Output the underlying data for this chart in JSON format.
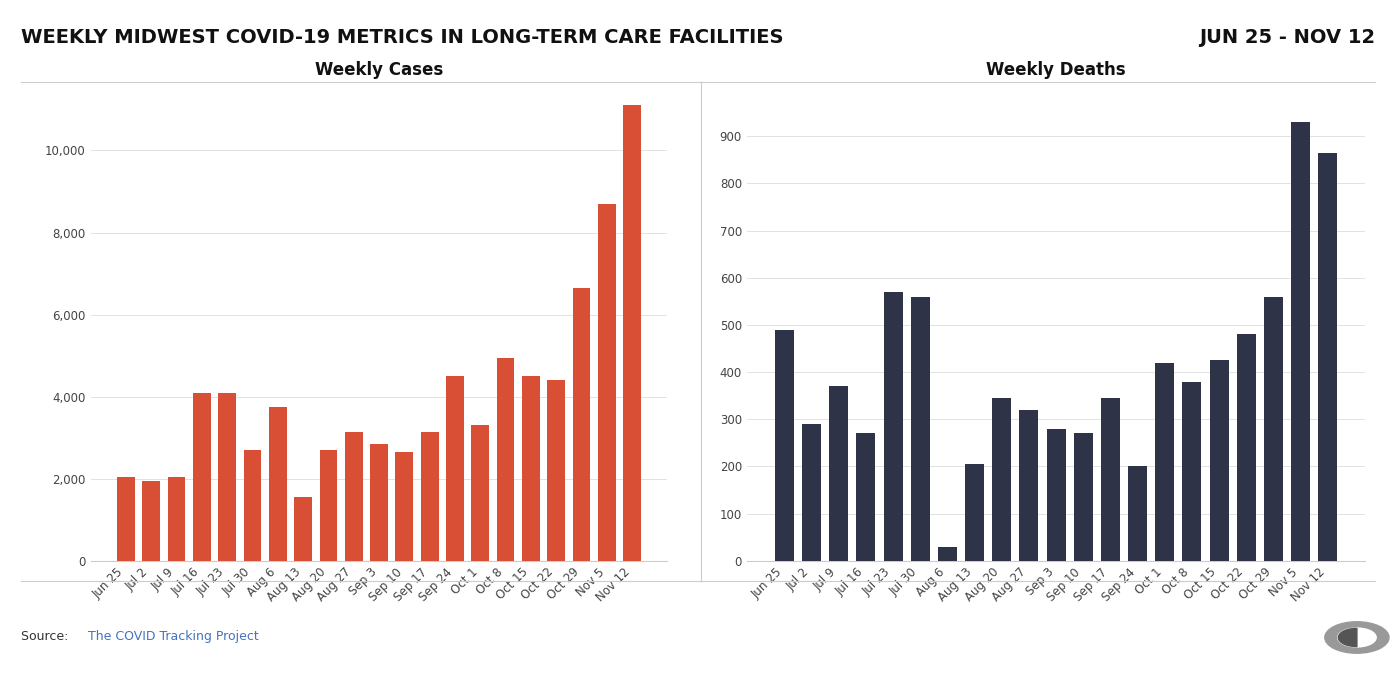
{
  "title": "WEEKLY MIDWEST COVID-19 METRICS IN LONG-TERM CARE FACILITIES",
  "date_range": "JUN 25 - NOV 12",
  "subtitle_left": "Weekly Cases",
  "subtitle_right": "Weekly Deaths",
  "source_prefix": "Source: ",
  "source_link": "The COVID Tracking Project",
  "cases_labels": [
    "Jun 25",
    "Jul 2",
    "Jul 9",
    "Jul 16",
    "Jul 23",
    "Jul 30",
    "Aug 6",
    "Aug 13",
    "Aug 20",
    "Aug 27",
    "Sep 3",
    "Sep 10",
    "Sep 17",
    "Sep 24",
    "Oct 1",
    "Oct 8",
    "Oct 15",
    "Oct 22",
    "Oct 29",
    "Nov 5",
    "Nov 12"
  ],
  "cases_values": [
    2050,
    1950,
    2050,
    4100,
    4100,
    2700,
    3750,
    1550,
    2700,
    3150,
    2850,
    2650,
    3150,
    4500,
    3300,
    4950,
    4500,
    4400,
    6650,
    8700,
    11100
  ],
  "deaths_labels": [
    "Jun 25",
    "Jul 2",
    "Jul 9",
    "Jul 16",
    "Jul 23",
    "Jul 30",
    "Aug 6",
    "Aug 13",
    "Aug 20",
    "Aug 27",
    "Sep 3",
    "Sep 10",
    "Sep 17",
    "Sep 24",
    "Oct 1",
    "Oct 8",
    "Oct 15",
    "Oct 22",
    "Oct 29",
    "Nov 5",
    "Nov 12"
  ],
  "deaths_values": [
    490,
    290,
    370,
    270,
    570,
    560,
    30,
    205,
    345,
    320,
    280,
    270,
    345,
    200,
    420,
    380,
    425,
    480,
    560,
    930,
    865
  ],
  "bar_color_cases": "#d94f35",
  "bar_color_deaths": "#2e3347",
  "background_color": "#ffffff",
  "title_bg_color": "#ffffff",
  "title_color": "#111111",
  "date_color": "#111111",
  "subtitle_color": "#111111",
  "grid_color": "#dddddd",
  "tick_label_color": "#444444",
  "source_prefix_color": "#333333",
  "source_link_color": "#4472c4",
  "divider_color": "#cccccc",
  "title_fontsize": 14,
  "subtitle_fontsize": 12,
  "tick_fontsize": 8.5,
  "source_fontsize": 9,
  "cases_ylim": [
    0,
    11500
  ],
  "deaths_ylim": [
    0,
    1000
  ],
  "cases_yticks": [
    0,
    2000,
    4000,
    6000,
    8000,
    10000
  ],
  "deaths_yticks": [
    0,
    100,
    200,
    300,
    400,
    500,
    600,
    700,
    800,
    900
  ]
}
